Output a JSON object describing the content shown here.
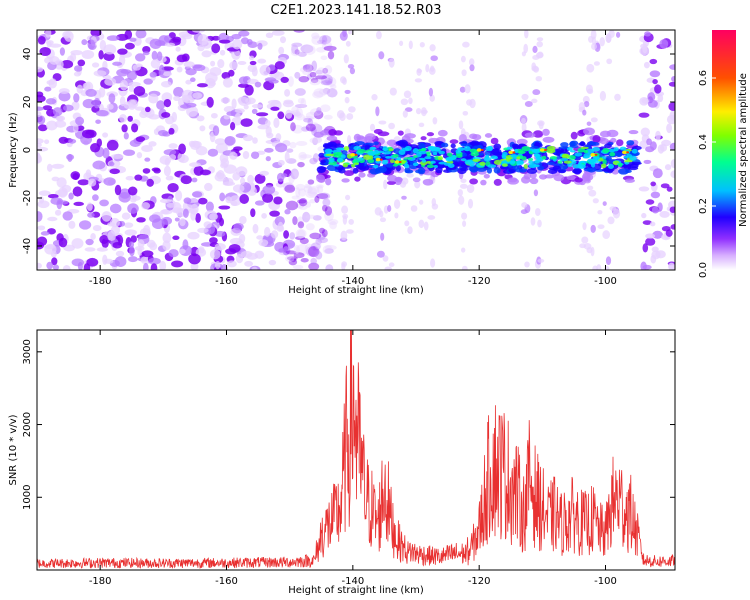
{
  "title": "C2E1.2023.141.18.52.R03",
  "chart_data": [
    {
      "type": "heatmap",
      "xlabel": "Height of straight line (km)",
      "ylabel": "Frequency (Hz)",
      "xlim": [
        -190,
        -89
      ],
      "ylim": [
        -50,
        50
      ],
      "xticks": [
        -180,
        -160,
        -140,
        -120,
        -100
      ],
      "yticks": [
        -40,
        -20,
        0,
        20,
        40
      ],
      "colorbar": {
        "label": "Normalized spectral amplitude",
        "range": [
          0,
          0.75
        ],
        "ticks": [
          0.0,
          0.2,
          0.4,
          0.6
        ],
        "colors": [
          "#ffffff",
          "#c080ff",
          "#7a00ff",
          "#0010ff",
          "#00ffff",
          "#00ff40",
          "#ffff00",
          "#ff6000",
          "#ff0050"
        ]
      },
      "features": {
        "noise_region_left": [
          -190,
          -143
        ],
        "signal_band": {
          "x": [
            -146,
            -95
          ],
          "frequency_center": -3,
          "frequency_halfwidth": 6
        },
        "noise_region_right": [
          -94,
          -89
        ]
      }
    },
    {
      "type": "line",
      "xlabel": "Height of straight line (km)",
      "ylabel": "SNR (10 * v/v)",
      "xlim": [
        -190,
        -89
      ],
      "ylim": [
        0,
        3300
      ],
      "xticks": [
        -180,
        -160,
        -140,
        -120,
        -100
      ],
      "yticks": [
        1000,
        2000,
        3000
      ],
      "color": "#e83030",
      "series": [
        {
          "x": [
            -190,
            -180,
            -170,
            -160,
            -150,
            -146,
            -145,
            -143,
            -142,
            -141,
            -140,
            -139,
            -138,
            -137,
            -136,
            -135,
            -134,
            -133,
            -132,
            -131,
            -130,
            -128,
            -126,
            -124,
            -122,
            -121,
            -120,
            -119,
            -118,
            -117,
            -116,
            -115,
            -114,
            -113,
            -112,
            -111,
            -110,
            -109,
            -108,
            -107,
            -106,
            -105,
            -104,
            -103,
            -102,
            -101,
            -100,
            -99,
            -98,
            -97,
            -96,
            -95,
            -94,
            -92,
            -89
          ],
          "values": [
            100,
            110,
            105,
            110,
            120,
            150,
            700,
            1000,
            1200,
            2400,
            3300,
            2300,
            1400,
            1200,
            900,
            1700,
            1000,
            600,
            450,
            300,
            250,
            220,
            200,
            250,
            250,
            500,
            800,
            1500,
            2100,
            2000,
            1900,
            1700,
            1500,
            1100,
            1800,
            1400,
            1200,
            1000,
            1100,
            900,
            1000,
            1100,
            950,
            900,
            1000,
            800,
            700,
            1300,
            1400,
            1200,
            1100,
            700,
            150,
            130,
            140
          ]
        }
      ]
    }
  ]
}
